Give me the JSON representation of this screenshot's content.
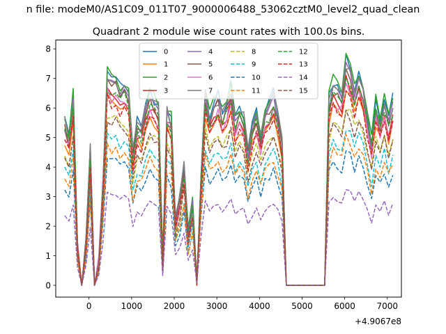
{
  "chart_data": {
    "type": "line",
    "suptitle": "n file: modeM0/AS1C09_011T07_9000006488_53062cztM0_level2_quad_clean",
    "title": "Quadrant 2 module wise count rates with 100.0s bins.",
    "xlabel": "",
    "ylabel": "",
    "x_offset_label": "+4.9067e8",
    "xlim": [
      -780,
      7330
    ],
    "ylim": [
      -0.4,
      8.3
    ],
    "x_ticks": [
      0,
      1000,
      2000,
      3000,
      4000,
      5000,
      6000,
      7000
    ],
    "x_tick_labels": [
      "0",
      "1000",
      "2000",
      "3000",
      "4000",
      "5000",
      "6000",
      "7000"
    ],
    "y_ticks": [
      0,
      1,
      2,
      3,
      4,
      5,
      6,
      7,
      8
    ],
    "y_tick_labels": [
      "0",
      "1",
      "2",
      "3",
      "4",
      "5",
      "6",
      "7",
      "8"
    ],
    "grid": false,
    "legend_position": "upper-center",
    "x": [
      -570,
      -470,
      -370,
      -270,
      -170,
      -70,
      30,
      130,
      230,
      330,
      430,
      530,
      630,
      730,
      830,
      930,
      1030,
      1130,
      1230,
      1330,
      1430,
      1530,
      1630,
      1730,
      1830,
      1930,
      2030,
      2130,
      2230,
      2330,
      2430,
      2530,
      2630,
      2730,
      2830,
      2930,
      3030,
      3130,
      3230,
      3330,
      3430,
      3530,
      3630,
      3730,
      3830,
      3930,
      4030,
      4130,
      4230,
      4330,
      4430,
      4530,
      4630,
      4730,
      4830,
      4930,
      5030,
      5130,
      5230,
      5330,
      5430,
      5530,
      5630,
      5730,
      5830,
      5930,
      6030,
      6130,
      6230,
      6330,
      6430,
      6530,
      6630,
      6730,
      6830,
      6930,
      7030,
      7130
    ],
    "valid_mask": [
      1,
      1,
      1,
      1,
      1,
      1,
      1,
      1,
      1,
      1,
      1,
      1,
      1,
      1,
      1,
      1,
      1,
      1,
      1,
      1,
      1,
      1,
      1,
      1,
      1,
      1,
      1,
      1,
      1,
      1,
      1,
      1,
      1,
      1,
      1,
      1,
      1,
      1,
      1,
      1,
      1,
      1,
      1,
      1,
      1,
      1,
      1,
      1,
      1,
      1,
      1,
      1,
      1,
      1,
      1,
      1,
      1,
      1,
      1,
      1,
      1,
      1,
      1,
      1,
      1,
      1,
      1,
      1,
      1,
      1,
      1,
      1,
      1,
      1,
      1,
      1,
      1,
      1
    ],
    "shape": [
      5.6,
      5.1,
      6.4,
      1.4,
      0.0,
      1.5,
      4.7,
      0.0,
      0.8,
      3.6,
      7.2,
      7.0,
      7.1,
      6.7,
      6.8,
      6.6,
      4.5,
      5.5,
      5.3,
      6.0,
      6.5,
      6.3,
      6.1,
      0.8,
      6.0,
      5.6,
      2.2,
      2.9,
      4.1,
      1.8,
      2.8,
      0.1,
      3.8,
      6.6,
      5.8,
      6.1,
      6.4,
      5.9,
      6.2,
      6.8,
      5.6,
      6.0,
      5.8,
      4.6,
      5.4,
      5.9,
      5.1,
      5.9,
      6.1,
      6.5,
      5.8,
      4.9,
      0.0,
      0.0,
      0.0,
      0.0,
      0.0,
      0.0,
      0.0,
      0.0,
      0.0,
      0.0,
      6.3,
      6.9,
      6.7,
      6.5,
      7.6,
      7.3,
      6.6,
      7.2,
      6.7,
      5.8,
      4.9,
      6.2,
      5.6,
      6.4,
      5.6,
      6.3
    ],
    "series": [
      {
        "name": "0",
        "color": "#1f77b4",
        "dash": "solid",
        "scale": 1.0
      },
      {
        "name": "1",
        "color": "#ff7f0e",
        "dash": "solid",
        "scale": 0.875
      },
      {
        "name": "2",
        "color": "#2ca02c",
        "dash": "solid",
        "scale": 1.012
      },
      {
        "name": "3",
        "color": "#d62728",
        "dash": "solid",
        "scale": 0.915
      },
      {
        "name": "4",
        "color": "#9467bd",
        "dash": "solid",
        "scale": 0.965
      },
      {
        "name": "5",
        "color": "#8c564b",
        "dash": "solid",
        "scale": 0.95
      },
      {
        "name": "6",
        "color": "#e377c2",
        "dash": "solid",
        "scale": 0.905
      },
      {
        "name": "7",
        "color": "#7f7f7f",
        "dash": "solid",
        "scale": 0.985
      },
      {
        "name": "8",
        "color": "#bcbd22",
        "dash": "dashed",
        "scale": 0.795
      },
      {
        "name": "9",
        "color": "#17becf",
        "dash": "dashed",
        "scale": 0.7
      },
      {
        "name": "10",
        "color": "#1f77b4",
        "dash": "dashed",
        "scale": 0.6
      },
      {
        "name": "11",
        "color": "#ff7f0e",
        "dash": "dashed",
        "scale": 0.655
      },
      {
        "name": "12",
        "color": "#2ca02c",
        "dash": "dashed",
        "scale": 0.935
      },
      {
        "name": "13",
        "color": "#d62728",
        "dash": "dashed",
        "scale": 0.88
      },
      {
        "name": "14",
        "color": "#9467bd",
        "dash": "dashed",
        "scale": 0.435
      },
      {
        "name": "15",
        "color": "#8c564b",
        "dash": "dashed",
        "scale": 0.78
      }
    ]
  }
}
